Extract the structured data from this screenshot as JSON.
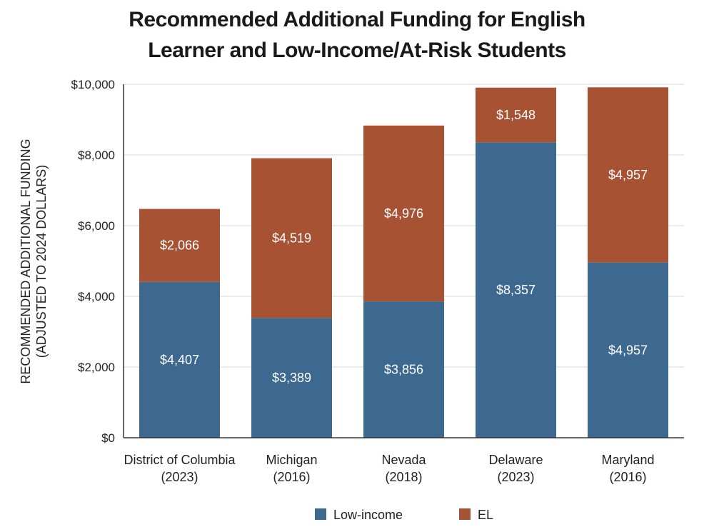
{
  "chart_data": {
    "type": "bar",
    "stacked": true,
    "title_lines": [
      "Recommended Additional Funding for English",
      "Learner and Low-Income/At-Risk Students"
    ],
    "ylabel_lines": [
      "RECOMMENDED ADDITIONAL FUNDING",
      "(ADJUSTED TO 2024 DOLLARS)"
    ],
    "categories": [
      [
        "District of Columbia",
        "(2023)"
      ],
      [
        "Michigan",
        "(2016)"
      ],
      [
        "Nevada",
        "(2018)"
      ],
      [
        "Delaware",
        "(2023)"
      ],
      [
        "Maryland",
        "(2016)"
      ]
    ],
    "series": [
      {
        "name": "Low-income",
        "color": "#3d6990",
        "values": [
          4407,
          3389,
          3856,
          8357,
          4957
        ],
        "labels": [
          "$4,407",
          "$3,389",
          "$3,856",
          "$8,357",
          "$4,957"
        ]
      },
      {
        "name": "EL",
        "color": "#a85234",
        "values": [
          2066,
          4519,
          4976,
          1548,
          4957
        ],
        "labels": [
          "$2,066",
          "$4,519",
          "$4,976",
          "$1,548",
          "$4,957"
        ]
      }
    ],
    "ylim": [
      0,
      10000
    ],
    "yticks": [
      0,
      2000,
      4000,
      6000,
      8000,
      10000
    ],
    "ytick_labels": [
      "$0",
      "$2,000",
      "$4,000",
      "$6,000",
      "$8,000",
      "$10,000"
    ],
    "grid": true,
    "legend_position": "bottom"
  }
}
